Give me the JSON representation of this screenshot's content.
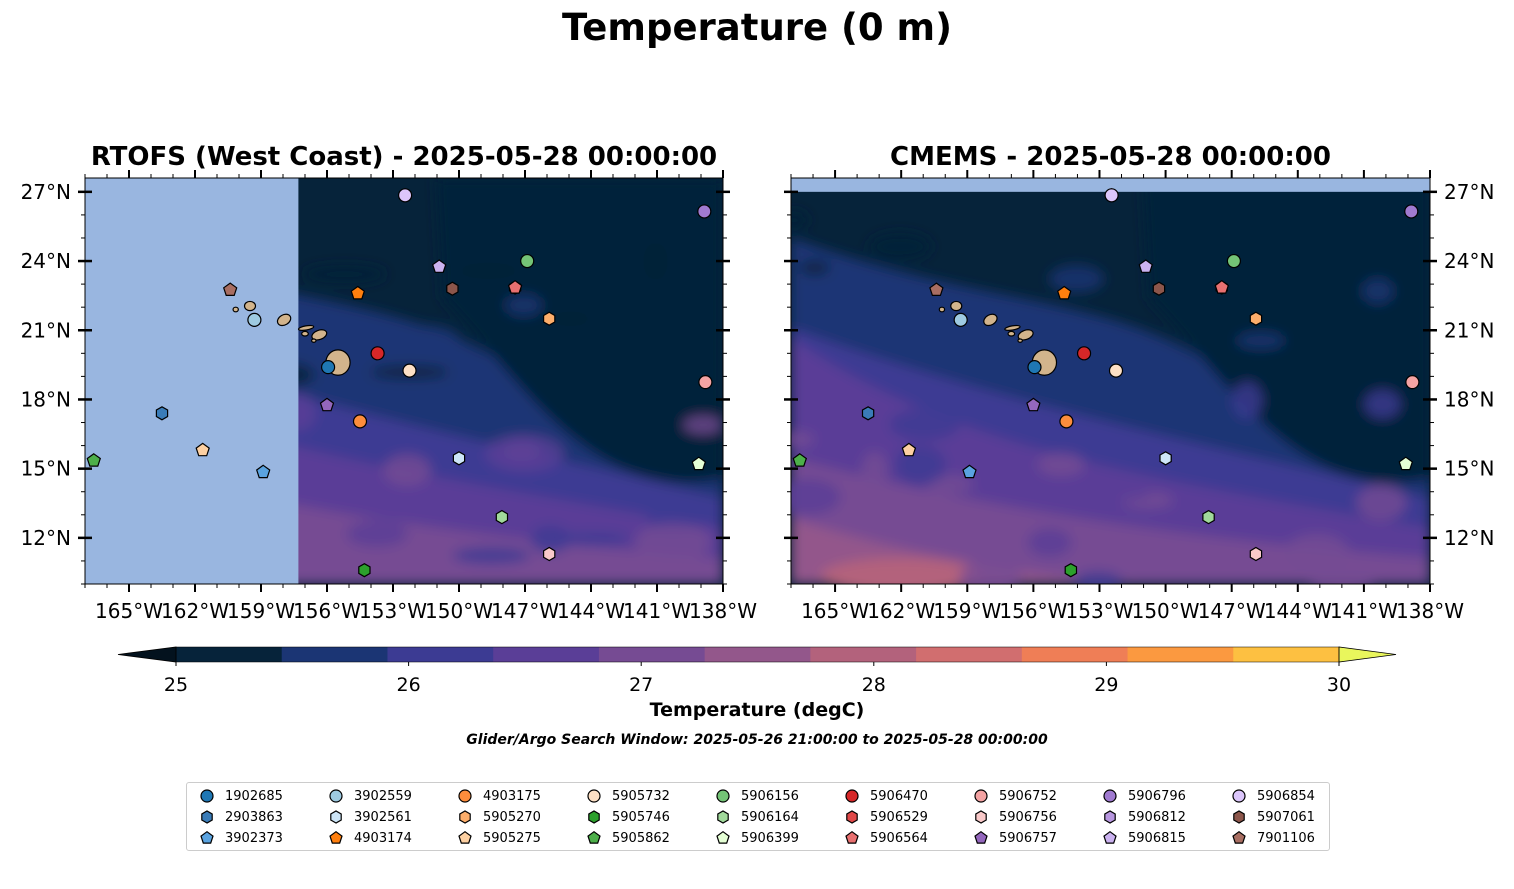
{
  "figure": {
    "suptitle": "Temperature (0 m)",
    "colorbar_label": "Temperature (degC)",
    "search_window": "Glider/Argo Search Window: 2025-05-26 21:00:00 to 2025-05-28 00:00:00"
  },
  "chart_data": {
    "type": "map",
    "panels": [
      {
        "title": "RTOFS (West Coast) - 2025-05-28 00:00:00",
        "model_coverage_lon_min": -157.3
      },
      {
        "title": "CMEMS - 2025-05-28 00:00:00",
        "model_coverage_lat_max": 27.0
      }
    ],
    "lon_range": [
      -167.0,
      -138.0
    ],
    "lat_range": [
      10.0,
      27.6
    ],
    "x_ticks": [
      -165,
      -162,
      -159,
      -156,
      -153,
      -150,
      -147,
      -144,
      -141,
      -138
    ],
    "x_tick_labels": [
      "165°W",
      "162°W",
      "159°W",
      "156°W",
      "153°W",
      "150°W",
      "147°W",
      "144°W",
      "141°W",
      "138°W"
    ],
    "y_ticks": [
      12,
      15,
      18,
      21,
      24,
      27
    ],
    "y_tick_labels": [
      "12°N",
      "15°N",
      "18°N",
      "21°N",
      "24°N",
      "27°N"
    ],
    "colorbar": {
      "min": 25,
      "max": 30,
      "step": 0.5,
      "extend": "both",
      "ticks": [
        "25",
        "26",
        "27",
        "28",
        "29",
        "30"
      ],
      "colors": [
        "#06233a",
        "#1b3574",
        "#3c3b93",
        "#5a3e97",
        "#764b93",
        "#93578b",
        "#b3627c",
        "#d16e6f",
        "#ef7e56",
        "#fb9940",
        "#fdc041"
      ],
      "under_color": "#03121e",
      "over_color": "#e9f65c"
    },
    "land_color": "#d2b48c",
    "nodata_color": "#99b6e0",
    "floats": [
      {
        "id": "1902685",
        "lon": -155.95,
        "lat": 19.4,
        "marker": "circle",
        "color": "#1f77b4"
      },
      {
        "id": "2903863",
        "lon": -163.5,
        "lat": 17.4,
        "marker": "hexagon",
        "color": "#3a7cb8"
      },
      {
        "id": "3902373",
        "lon": -158.9,
        "lat": 14.85,
        "marker": "pentagon",
        "color": "#5aa3e0"
      },
      {
        "id": "3902559",
        "lon": -159.3,
        "lat": 21.45,
        "marker": "circle",
        "color": "#9ecae1"
      },
      {
        "id": "3902561",
        "lon": -150.0,
        "lat": 15.45,
        "marker": "hexagon",
        "color": "#cde5f7"
      },
      {
        "id": "4903174",
        "lon": -154.6,
        "lat": 22.6,
        "marker": "pentagon",
        "color": "#ff7f0e"
      },
      {
        "id": "4903175",
        "lon": -154.5,
        "lat": 17.05,
        "marker": "circle",
        "color": "#fd8d3c"
      },
      {
        "id": "5905270",
        "lon": -145.9,
        "lat": 21.5,
        "marker": "hexagon",
        "color": "#fdae6b"
      },
      {
        "id": "5905275",
        "lon": -161.65,
        "lat": 15.8,
        "marker": "pentagon",
        "color": "#fdd0a2"
      },
      {
        "id": "5905732",
        "lon": -152.25,
        "lat": 19.25,
        "marker": "circle",
        "color": "#fde0c5"
      },
      {
        "id": "5905746",
        "lon": -154.3,
        "lat": 10.6,
        "marker": "hexagon",
        "color": "#2ca02c"
      },
      {
        "id": "5905862",
        "lon": -166.6,
        "lat": 15.35,
        "marker": "pentagon",
        "color": "#4daf4a"
      },
      {
        "id": "5906156",
        "lon": -146.9,
        "lat": 24.0,
        "marker": "circle",
        "color": "#74c476"
      },
      {
        "id": "5906164",
        "lon": -148.05,
        "lat": 12.9,
        "marker": "hexagon",
        "color": "#a1d99b"
      },
      {
        "id": "5906399",
        "lon": -139.1,
        "lat": 15.2,
        "marker": "pentagon",
        "color": "#e5ffd5"
      },
      {
        "id": "5906470",
        "lon": -153.7,
        "lat": 20.0,
        "marker": "circle",
        "color": "#d62728"
      },
      {
        "id": "5906529",
        "lon": -147.45,
        "lat": 22.85,
        "marker": "hexagon",
        "color": "#e04848"
      },
      {
        "id": "5906564",
        "lon": -147.45,
        "lat": 22.85,
        "marker": "pentagon",
        "color": "#e87070"
      },
      {
        "id": "5906752",
        "lon": -138.8,
        "lat": 18.75,
        "marker": "circle",
        "color": "#f4a3a3"
      },
      {
        "id": "5906756",
        "lon": -145.9,
        "lat": 11.3,
        "marker": "hexagon",
        "color": "#f9c9c9"
      },
      {
        "id": "5906757",
        "lon": -156.0,
        "lat": 17.75,
        "marker": "pentagon",
        "color": "#9467bd"
      },
      {
        "id": "5906796",
        "lon": -138.85,
        "lat": 26.15,
        "marker": "circle",
        "color": "#a07ad0"
      },
      {
        "id": "5906812",
        "lon": -152.45,
        "lat": 26.85,
        "marker": "hexagon",
        "color": "#b897e0"
      },
      {
        "id": "5906815",
        "lon": -150.9,
        "lat": 23.75,
        "marker": "pentagon",
        "color": "#cbb2f0"
      },
      {
        "id": "5906854",
        "lon": -152.45,
        "lat": 26.85,
        "marker": "circle",
        "color": "#dcc6fb"
      },
      {
        "id": "5907061",
        "lon": -150.3,
        "lat": 22.8,
        "marker": "hexagon",
        "color": "#8c564b"
      },
      {
        "id": "7901106",
        "lon": -160.4,
        "lat": 22.75,
        "marker": "pentagon",
        "color": "#a86e62"
      }
    ]
  }
}
